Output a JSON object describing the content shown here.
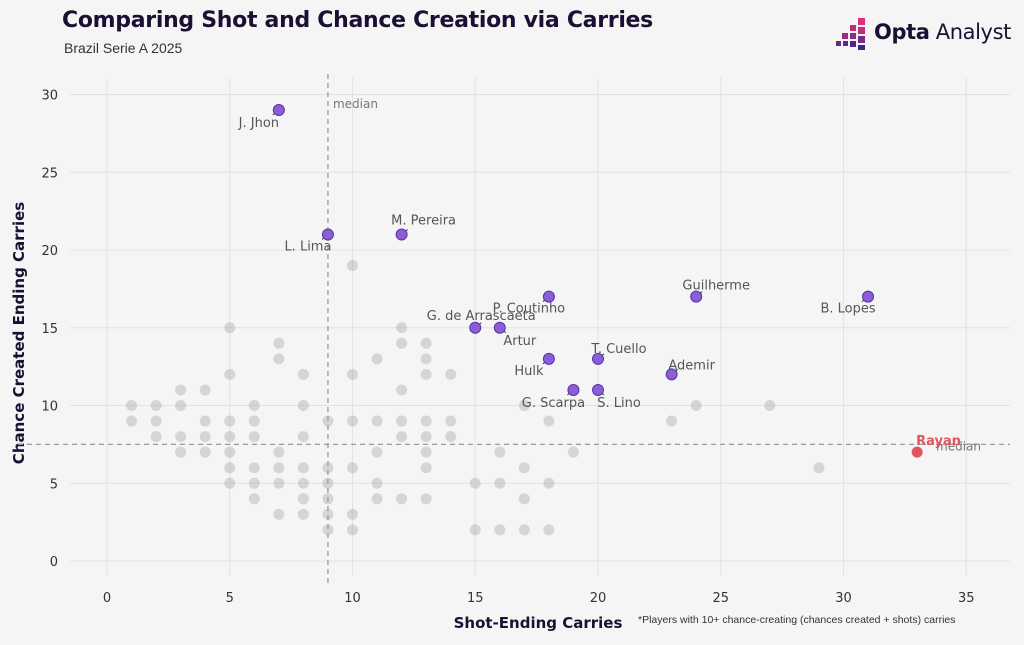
{
  "header": {
    "title": "Comparing Shot and Chance Creation via Carries",
    "subtitle": "Brazil Serie A 2025",
    "brand_bold": "Opta",
    "brand_light": " Analyst"
  },
  "footnote": "*Players with 10+ chance-creating (chances created + shots) carries",
  "colors": {
    "highlight": "#8a5fd6",
    "highlight_edge": "#5b2fa8",
    "focus": "#e05560",
    "other": "#9a9a9a",
    "brand_pink": "#e0307a",
    "brand_purple": "#4a2a8a"
  },
  "chart_data": {
    "type": "scatter",
    "title": "Comparing Shot and Chance Creation via Carries",
    "subtitle": "Brazil Serie A 2025",
    "xlabel": "Shot-Ending Carries",
    "ylabel": "Chance Created Ending Carries",
    "xlim": [
      -1.5,
      36.5
    ],
    "ylim": [
      -1,
      32
    ],
    "xticks": [
      0,
      5,
      10,
      15,
      20,
      25,
      30,
      35
    ],
    "yticks": [
      0,
      5,
      10,
      15,
      20,
      25,
      30
    ],
    "grid": true,
    "median_x": 9,
    "median_y": 7.5,
    "median_label": "median",
    "highlighted": [
      {
        "name": "J. Jhon",
        "x": 7,
        "y": 29
      },
      {
        "name": "L. Lima",
        "x": 9,
        "y": 21
      },
      {
        "name": "M. Pereira",
        "x": 12,
        "y": 21
      },
      {
        "name": "G. de Arrascaeta",
        "x": 15,
        "y": 15
      },
      {
        "name": "Artur",
        "x": 16,
        "y": 15
      },
      {
        "name": "P. Coutinho",
        "x": 18,
        "y": 17
      },
      {
        "name": "Hulk",
        "x": 18,
        "y": 13
      },
      {
        "name": "G. Scarpa",
        "x": 19,
        "y": 11
      },
      {
        "name": "T. Cuello",
        "x": 20,
        "y": 13
      },
      {
        "name": "S. Lino",
        "x": 20,
        "y": 11
      },
      {
        "name": "Ademir",
        "x": 23,
        "y": 12
      },
      {
        "name": "Guilherme",
        "x": 24,
        "y": 17
      },
      {
        "name": "B. Lopes",
        "x": 31,
        "y": 17
      }
    ],
    "focus": {
      "name": "Rayan",
      "x": 33,
      "y": 7
    },
    "others": [
      [
        1,
        10
      ],
      [
        1,
        9
      ],
      [
        2,
        10
      ],
      [
        2,
        9
      ],
      [
        2,
        8
      ],
      [
        3,
        11
      ],
      [
        3,
        10
      ],
      [
        3,
        8
      ],
      [
        3,
        7
      ],
      [
        4,
        11
      ],
      [
        4,
        9
      ],
      [
        4,
        8
      ],
      [
        4,
        7
      ],
      [
        5,
        15
      ],
      [
        5,
        12
      ],
      [
        5,
        9
      ],
      [
        5,
        8
      ],
      [
        5,
        7
      ],
      [
        5,
        6
      ],
      [
        5,
        5
      ],
      [
        6,
        10
      ],
      [
        6,
        9
      ],
      [
        6,
        8
      ],
      [
        6,
        6
      ],
      [
        6,
        5
      ],
      [
        6,
        4
      ],
      [
        7,
        14
      ],
      [
        7,
        13
      ],
      [
        7,
        7
      ],
      [
        7,
        6
      ],
      [
        7,
        5
      ],
      [
        7,
        3
      ],
      [
        8,
        12
      ],
      [
        8,
        10
      ],
      [
        8,
        8
      ],
      [
        8,
        6
      ],
      [
        8,
        5
      ],
      [
        8,
        4
      ],
      [
        8,
        3
      ],
      [
        9,
        9
      ],
      [
        9,
        6
      ],
      [
        9,
        5
      ],
      [
        9,
        4
      ],
      [
        9,
        3
      ],
      [
        9,
        2
      ],
      [
        10,
        19
      ],
      [
        10,
        12
      ],
      [
        10,
        9
      ],
      [
        10,
        6
      ],
      [
        10,
        3
      ],
      [
        10,
        2
      ],
      [
        11,
        13
      ],
      [
        11,
        9
      ],
      [
        11,
        7
      ],
      [
        11,
        5
      ],
      [
        11,
        4
      ],
      [
        12,
        15
      ],
      [
        12,
        14
      ],
      [
        12,
        11
      ],
      [
        12,
        9
      ],
      [
        12,
        8
      ],
      [
        12,
        4
      ],
      [
        13,
        14
      ],
      [
        13,
        13
      ],
      [
        13,
        12
      ],
      [
        13,
        9
      ],
      [
        13,
        8
      ],
      [
        13,
        7
      ],
      [
        13,
        6
      ],
      [
        13,
        4
      ],
      [
        14,
        12
      ],
      [
        14,
        9
      ],
      [
        14,
        8
      ],
      [
        15,
        5
      ],
      [
        15,
        2
      ],
      [
        16,
        7
      ],
      [
        16,
        5
      ],
      [
        16,
        2
      ],
      [
        17,
        10
      ],
      [
        17,
        6
      ],
      [
        17,
        4
      ],
      [
        17,
        2
      ],
      [
        18,
        9
      ],
      [
        18,
        5
      ],
      [
        18,
        2
      ],
      [
        19,
        7
      ],
      [
        23,
        9
      ],
      [
        24,
        10
      ],
      [
        27,
        10
      ],
      [
        29,
        6
      ]
    ]
  }
}
